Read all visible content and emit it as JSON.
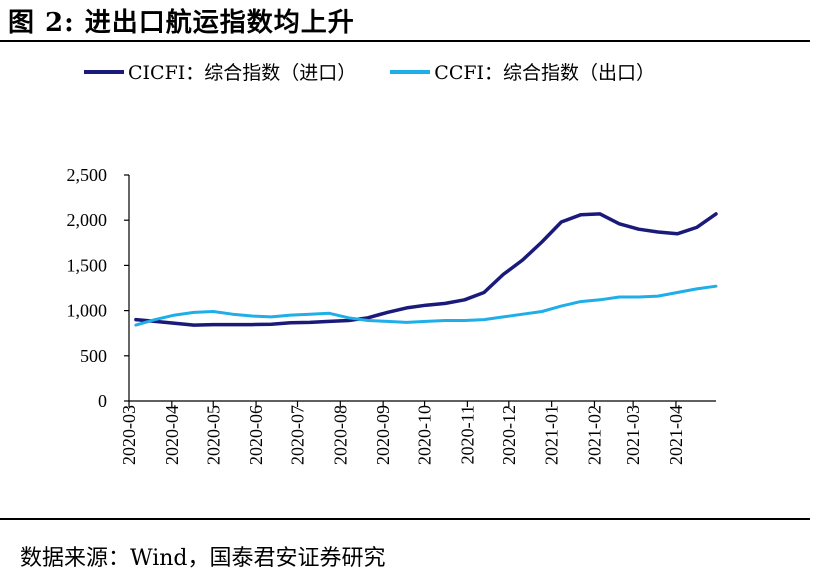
{
  "figure": {
    "title": "图 2:  进出口航运指数均上升",
    "source": "数据来源：Wind，国泰君安证券研究"
  },
  "colors": {
    "cicfi": "#1a1a7a",
    "ccfi": "#1faee8"
  },
  "chart_data": {
    "type": "line",
    "title": "",
    "xlabel": "",
    "ylabel": "",
    "ylim": [
      0,
      2500
    ],
    "yticks": [
      0,
      500,
      1000,
      1500,
      2000,
      2500
    ],
    "ytick_labels": [
      "0",
      "500",
      "1,000",
      "1,500",
      "2,000",
      "2,500"
    ],
    "xlim": [
      "2020-03-01",
      "2021-04-30"
    ],
    "xtick_labels": [
      "2020-03",
      "2020-04",
      "2020-05",
      "2020-06",
      "2020-07",
      "2020-08",
      "2020-09",
      "2020-10",
      "2020-11",
      "2020-12",
      "2021-01",
      "2021-02",
      "2021-03",
      "2021-04"
    ],
    "grid": false,
    "legend": "top",
    "series": [
      {
        "name": "CICFI：综合指数（进口）",
        "x": [
          "2020-03-06",
          "2020-03-20",
          "2020-04-03",
          "2020-04-17",
          "2020-05-01",
          "2020-05-15",
          "2020-05-29",
          "2020-06-12",
          "2020-06-26",
          "2020-07-10",
          "2020-07-24",
          "2020-08-07",
          "2020-08-21",
          "2020-09-04",
          "2020-09-18",
          "2020-10-02",
          "2020-10-16",
          "2020-10-30",
          "2020-11-13",
          "2020-11-27",
          "2020-12-11",
          "2020-12-25",
          "2021-01-08",
          "2021-01-22",
          "2021-02-05",
          "2021-02-19",
          "2021-03-05",
          "2021-03-19",
          "2021-04-02",
          "2021-04-16",
          "2021-04-30"
        ],
        "values": [
          900,
          880,
          860,
          840,
          845,
          845,
          845,
          850,
          865,
          870,
          880,
          890,
          920,
          980,
          1030,
          1060,
          1080,
          1120,
          1200,
          1400,
          1560,
          1760,
          1980,
          2060,
          2070,
          1960,
          1900,
          1870,
          1850,
          1920,
          2070
        ]
      },
      {
        "name": "CCFI：综合指数（出口）",
        "x": [
          "2020-03-06",
          "2020-03-20",
          "2020-04-03",
          "2020-04-17",
          "2020-05-01",
          "2020-05-15",
          "2020-05-29",
          "2020-06-12",
          "2020-06-26",
          "2020-07-10",
          "2020-07-24",
          "2020-08-07",
          "2020-08-21",
          "2020-09-04",
          "2020-09-18",
          "2020-10-02",
          "2020-10-16",
          "2020-10-30",
          "2020-11-13",
          "2020-11-27",
          "2020-12-11",
          "2020-12-25",
          "2021-01-08",
          "2021-01-22",
          "2021-02-05",
          "2021-02-19",
          "2021-03-05",
          "2021-03-19",
          "2021-04-02",
          "2021-04-16",
          "2021-04-30"
        ],
        "values": [
          840,
          900,
          950,
          980,
          990,
          960,
          940,
          930,
          950,
          960,
          970,
          920,
          890,
          880,
          870,
          880,
          890,
          890,
          900,
          930,
          960,
          990,
          1050,
          1100,
          1120,
          1150,
          1150,
          1160,
          1200,
          1240,
          1270
        ]
      }
    ]
  }
}
